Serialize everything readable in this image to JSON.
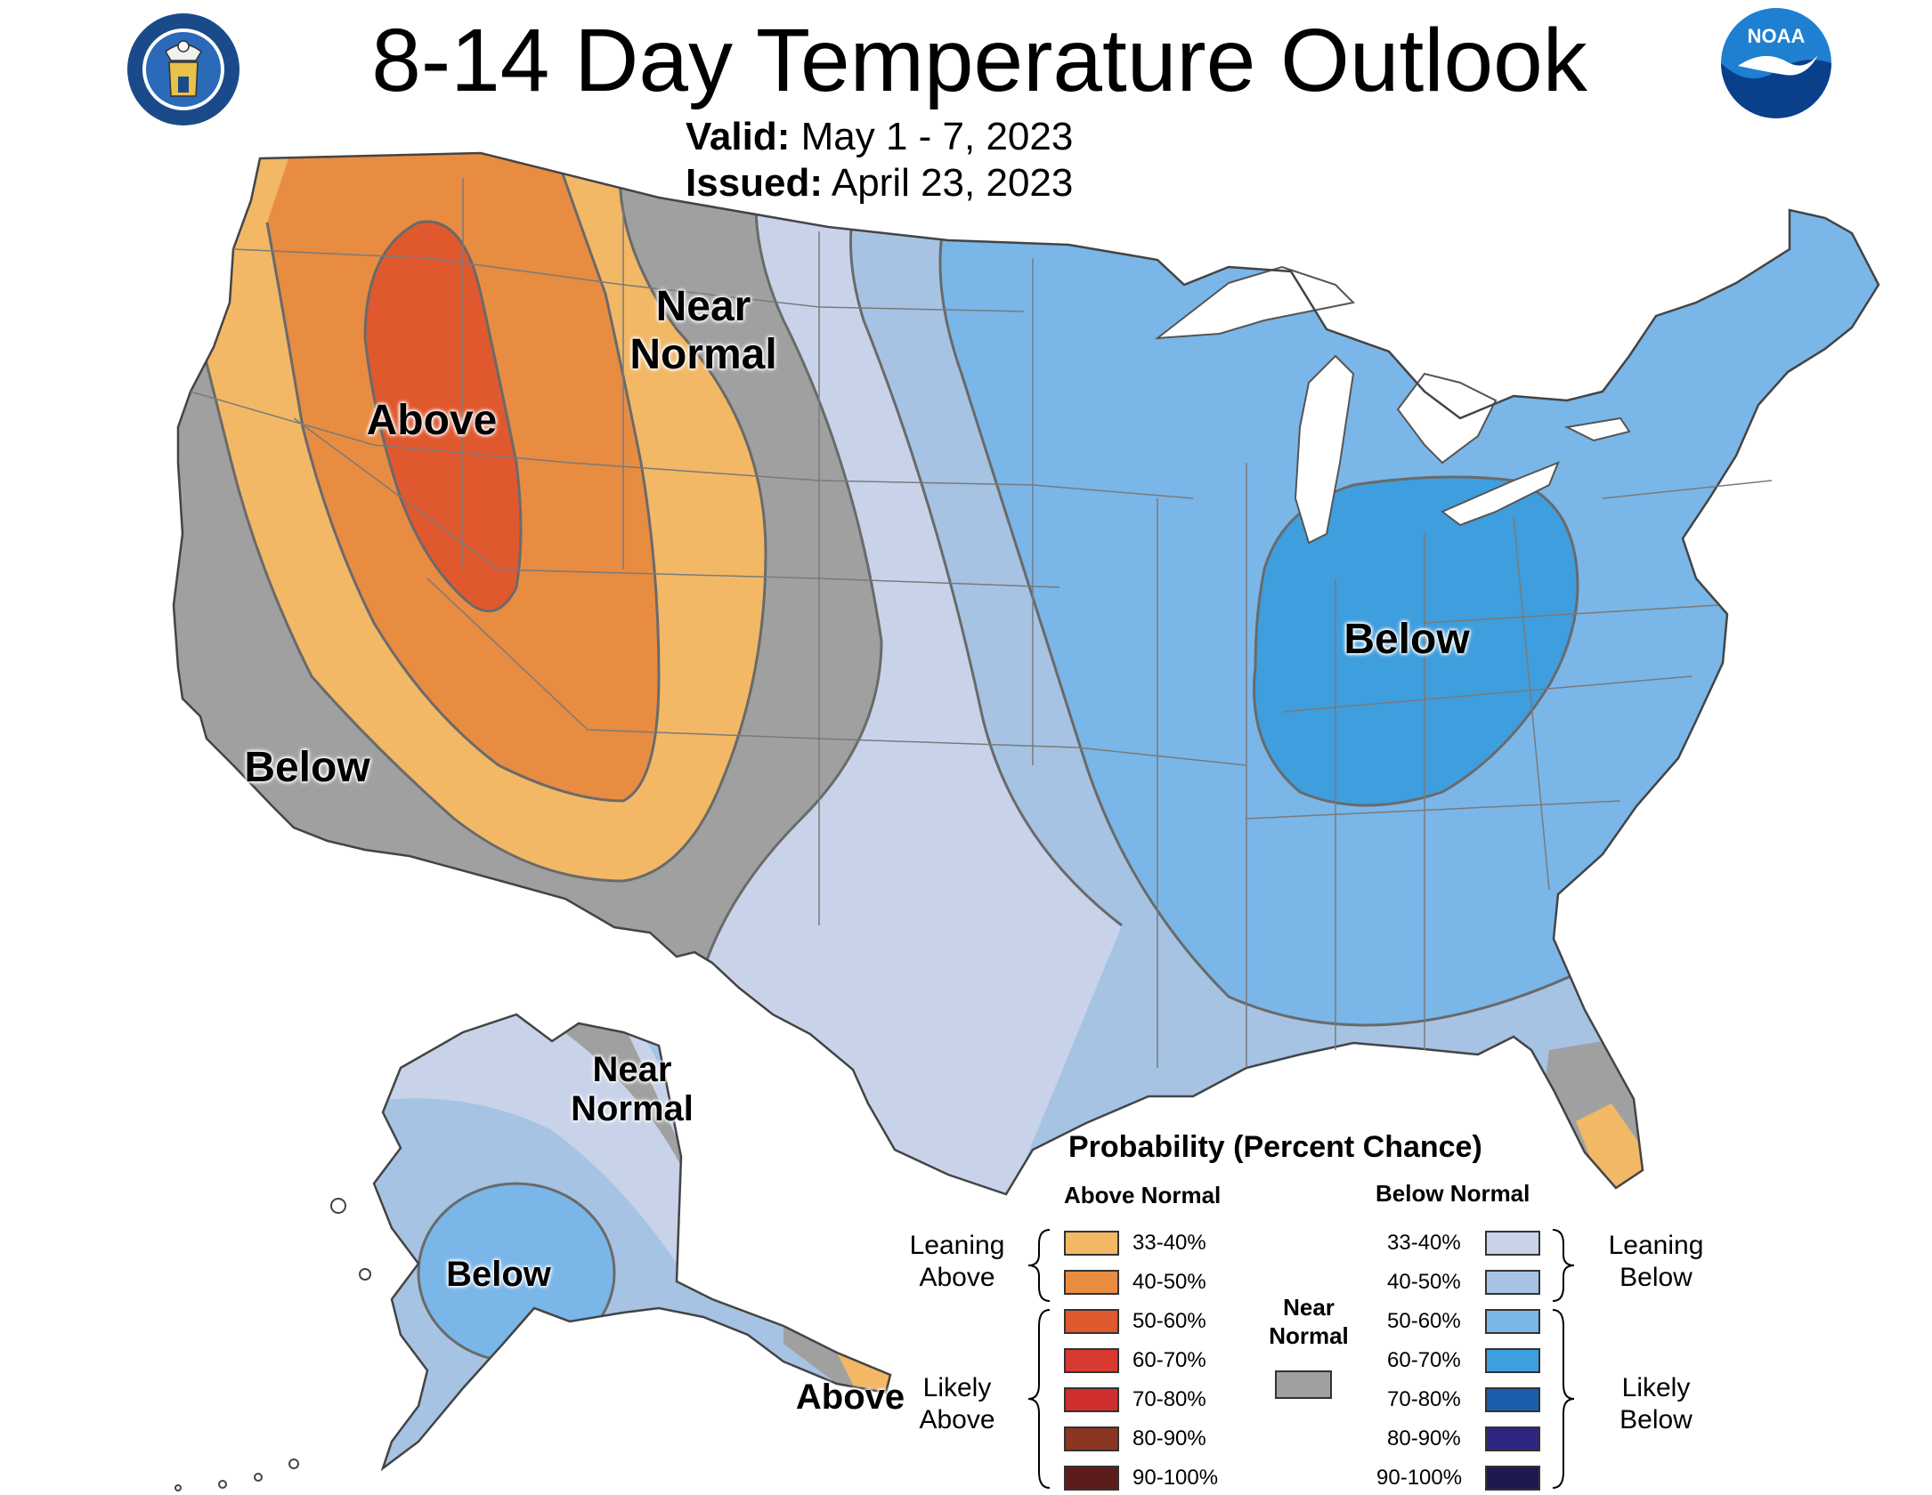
{
  "title": "8-14 Day Temperature Outlook",
  "valid_label": "Valid:",
  "valid_value": "May 1 - 7, 2023",
  "issued_label": "Issued:",
  "issued_value": "April 23, 2023",
  "logos": {
    "left": "Department of Commerce seal",
    "right": "NOAA logo"
  },
  "map_labels": {
    "above_west": "Above",
    "near_normal_plains_1": "Near",
    "near_normal_plains_2": "Normal",
    "below_california": "Below",
    "below_east": "Below",
    "near_normal_alaska_1": "Near",
    "near_normal_alaska_2": "Normal",
    "below_alaska": "Below",
    "above_alaska_panhandle": "Above"
  },
  "colors": {
    "above_33_40": "#f2b866",
    "above_40_50": "#e88c42",
    "above_50_60": "#e0582e",
    "above_60_70": "#d83a32",
    "above_70_80": "#cf2f2f",
    "above_80_90": "#8a3622",
    "above_90_100": "#5c1c1c",
    "near_normal": "#a0a0a0",
    "below_33_40": "#c8d3ea",
    "below_40_50": "#a6c3e4",
    "below_50_60": "#7ab6e8",
    "below_60_70": "#3f9edd",
    "below_70_80": "#1a5fab",
    "below_80_90": "#2e2680",
    "below_90_100": "#1c1a4e"
  },
  "legend": {
    "title": "Probability (Percent Chance)",
    "above_header": "Above Normal",
    "below_header": "Below Normal",
    "above_ranges": [
      "33-40%",
      "40-50%",
      "50-60%",
      "60-70%",
      "70-80%",
      "80-90%",
      "90-100%"
    ],
    "below_ranges": [
      "33-40%",
      "40-50%",
      "50-60%",
      "60-70%",
      "70-80%",
      "80-90%",
      "90-100%"
    ],
    "leaning_above_1": "Leaning",
    "leaning_above_2": "Above",
    "likely_above_1": "Likely",
    "likely_above_2": "Above",
    "near_normal_1": "Near",
    "near_normal_2": "Normal",
    "leaning_below_1": "Leaning",
    "leaning_below_2": "Below",
    "likely_below_1": "Likely",
    "likely_below_2": "Below"
  }
}
